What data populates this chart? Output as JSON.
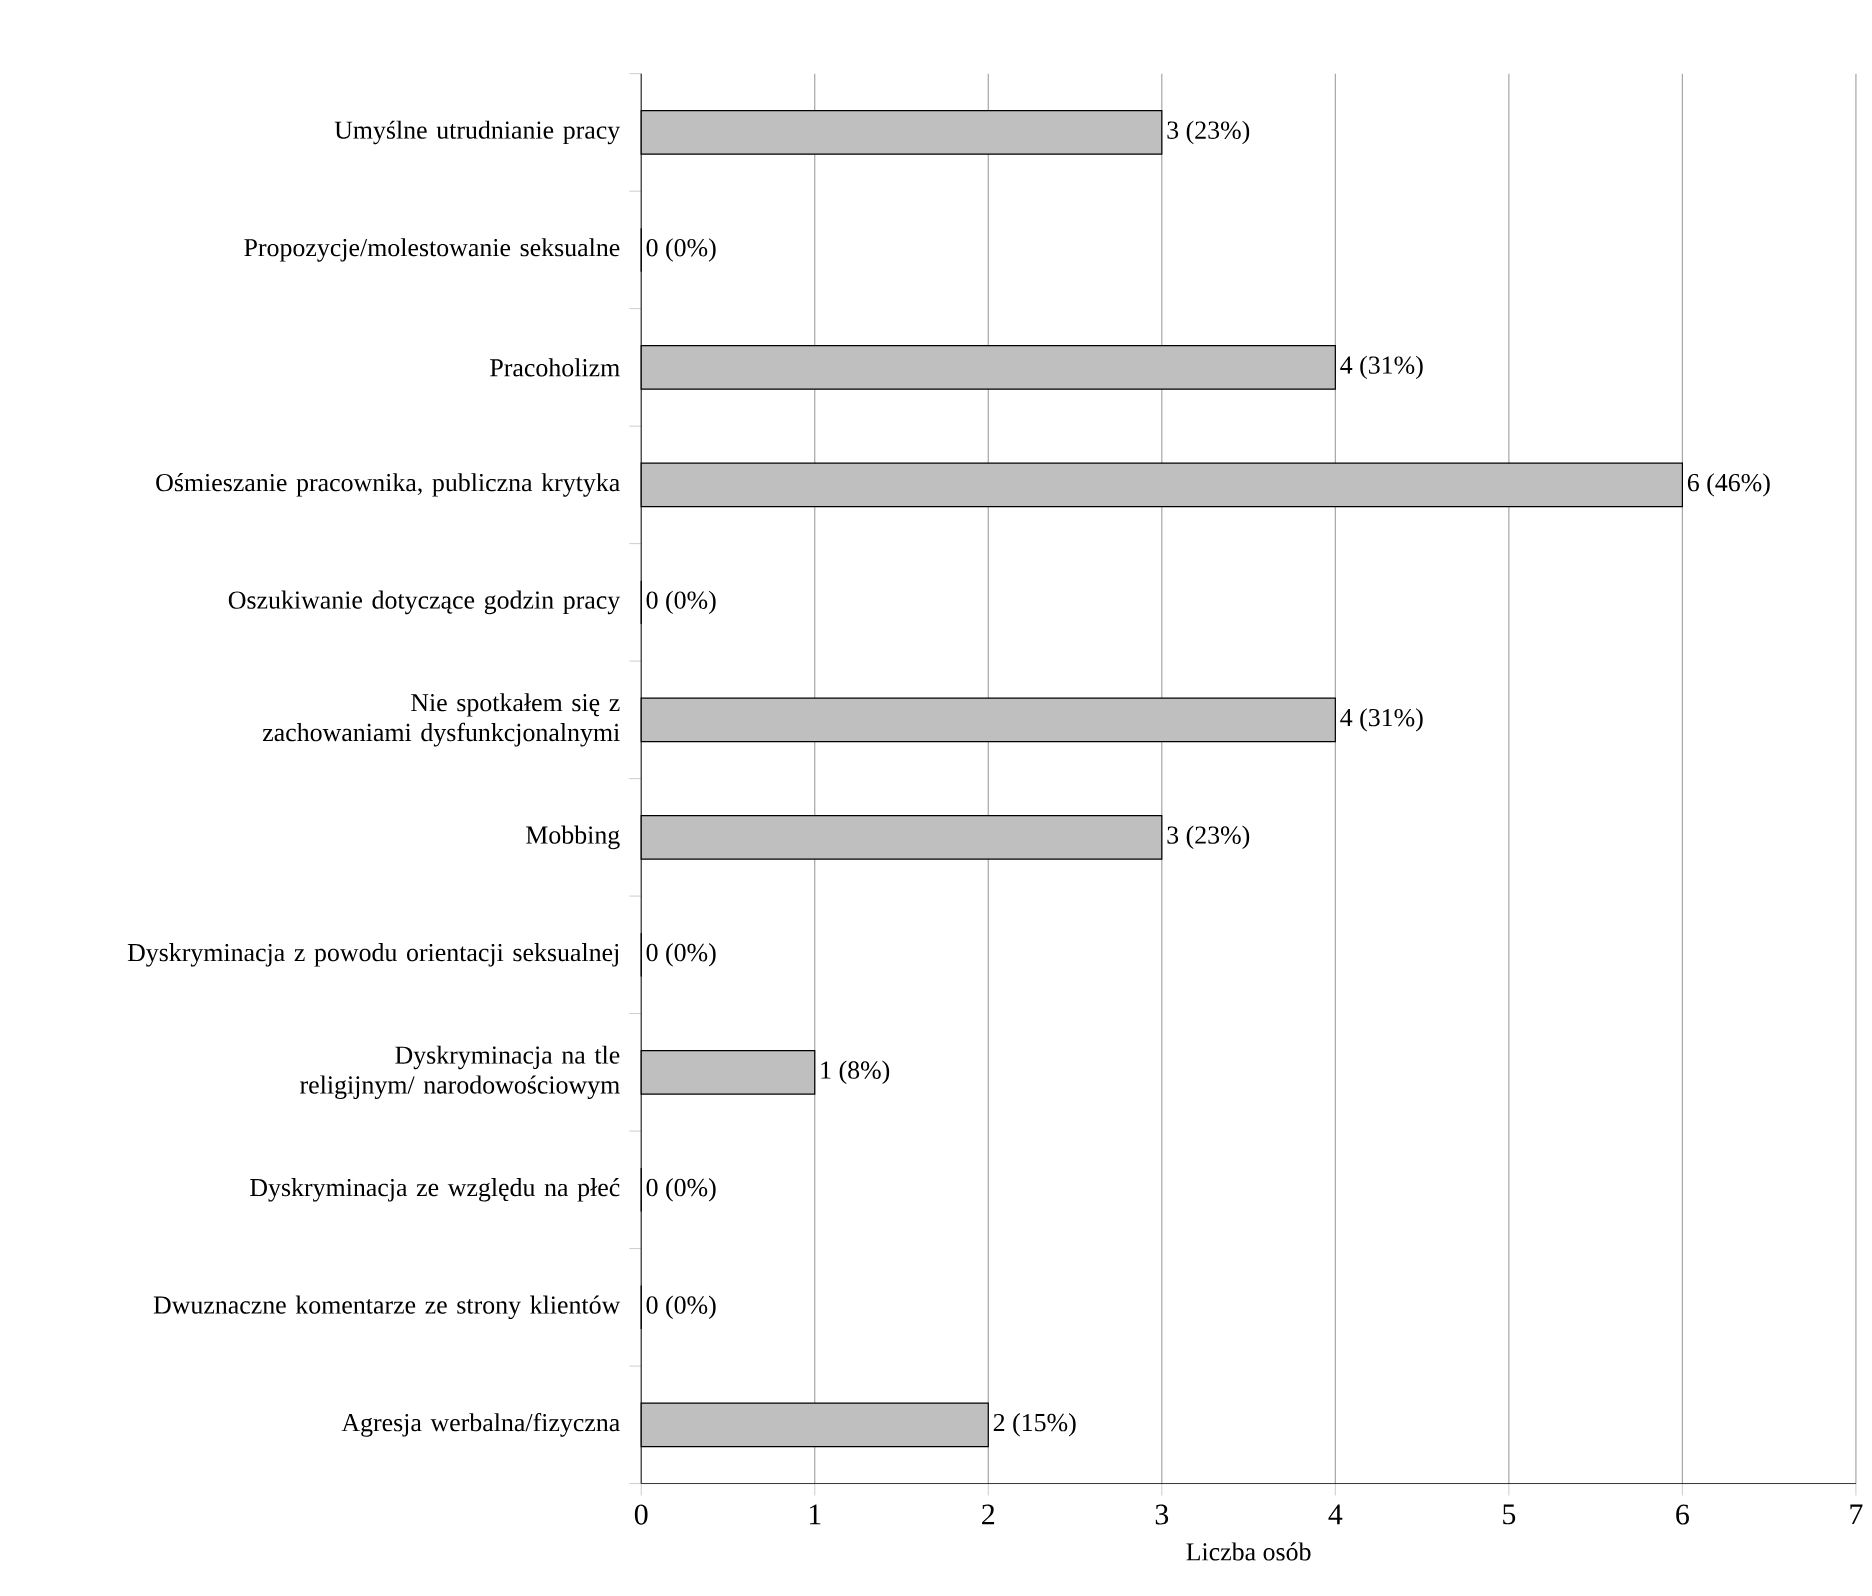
{
  "chart_data": {
    "type": "bar",
    "orientation": "horizontal",
    "xlabel": "Liczba osób",
    "categories": [
      "Umyślne utrudnianie pracy",
      "Propozycje/molestowanie seksualne",
      "Pracoholizm",
      "Ośmieszanie pracownika, publiczna krytyka",
      "Oszukiwanie dotyczące godzin pracy",
      "Nie spotkałem się z zachowaniami dysfunkcjonalnymi",
      "Mobbing",
      "Dyskryminacja z powodu orientacji seksualnej",
      "Dyskryminacja na tle religijnym/ narodowościowym",
      "Dyskryminacja ze względu na płeć",
      "Dwuznaczne komentarze ze strony klientów",
      "Agresja werbalna/fizyczna"
    ],
    "values": [
      3,
      0,
      4,
      6,
      0,
      4,
      3,
      0,
      1,
      0,
      0,
      2
    ],
    "value_labels": [
      "3 (23%)",
      "0 (0%)",
      "4 (31%)",
      "6 (46%)",
      "0 (0%)",
      "4 (31%)",
      "3 (23%)",
      "0 (0%)",
      "1 (8%)",
      "0 (0%)",
      "0 (0%)",
      "2 (15%)"
    ],
    "color": "#bfbfbf",
    "xlim": [
      0,
      7
    ],
    "xticks": [
      0,
      1,
      2,
      3,
      4,
      5,
      6,
      7
    ],
    "grid": "x"
  }
}
